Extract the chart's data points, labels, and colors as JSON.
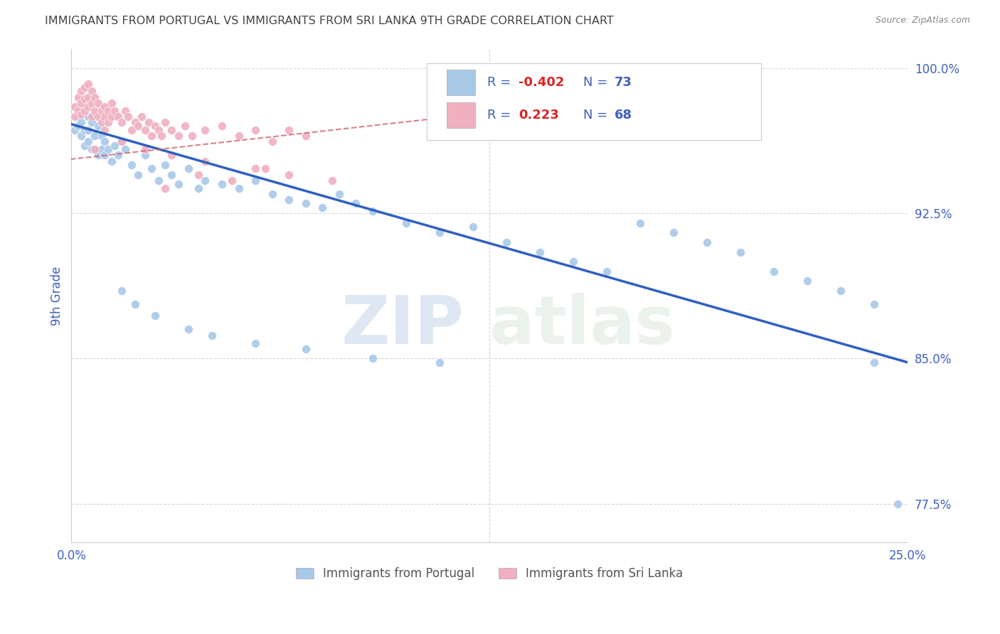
{
  "title": "IMMIGRANTS FROM PORTUGAL VS IMMIGRANTS FROM SRI LANKA 9TH GRADE CORRELATION CHART",
  "source": "Source: ZipAtlas.com",
  "ylabel": "9th Grade",
  "watermark_zip": "ZIP",
  "watermark_atlas": "atlas",
  "legend_blue_R": "R = -0.402",
  "legend_blue_N": "N = 73",
  "legend_pink_R": "R =  0.223",
  "legend_pink_N": "N = 68",
  "legend_label_portugal": "Immigrants from Portugal",
  "legend_label_srilanka": "Immigrants from Sri Lanka",
  "portugal_color": "#a8c8e8",
  "srilanka_color": "#f0b0c0",
  "portugal_line_color": "#3060c0",
  "srilanka_line_color": "#d06070",
  "blue_label_color": "#4060c0",
  "grid_color": "#cccccc",
  "title_color": "#444444",
  "source_color": "#888888",
  "xlim": [
    0.0,
    0.25
  ],
  "ylim": [
    0.755,
    1.01
  ],
  "ytick_vals": [
    0.775,
    0.85,
    0.925,
    1.0
  ],
  "ytick_labels": [
    "77.5%",
    "85.0%",
    "92.5%",
    "100.0%"
  ],
  "xtick_vals": [
    0.0,
    0.05,
    0.1,
    0.15,
    0.2,
    0.25
  ],
  "xtick_labels": [
    "0.0%",
    "",
    "",
    "",
    "",
    "25.0%"
  ],
  "portugal_line_x": [
    0.0,
    0.25
  ],
  "portugal_line_y": [
    0.971,
    0.848
  ],
  "srilanka_line_x": [
    -0.005,
    0.13
  ],
  "srilanka_line_y": [
    0.952,
    0.978
  ],
  "portugal_scatter_x": [
    0.001,
    0.002,
    0.002,
    0.003,
    0.003,
    0.004,
    0.004,
    0.005,
    0.005,
    0.005,
    0.006,
    0.006,
    0.007,
    0.007,
    0.008,
    0.008,
    0.009,
    0.009,
    0.01,
    0.01,
    0.011,
    0.012,
    0.013,
    0.014,
    0.015,
    0.016,
    0.018,
    0.02,
    0.022,
    0.024,
    0.026,
    0.028,
    0.03,
    0.032,
    0.035,
    0.038,
    0.04,
    0.045,
    0.05,
    0.055,
    0.06,
    0.065,
    0.07,
    0.075,
    0.08,
    0.085,
    0.09,
    0.1,
    0.11,
    0.12,
    0.13,
    0.14,
    0.15,
    0.16,
    0.17,
    0.18,
    0.19,
    0.2,
    0.21,
    0.22,
    0.23,
    0.24,
    0.015,
    0.019,
    0.025,
    0.035,
    0.042,
    0.055,
    0.07,
    0.09,
    0.11,
    0.24,
    0.247
  ],
  "portugal_scatter_y": [
    0.968,
    0.975,
    0.97,
    0.972,
    0.965,
    0.968,
    0.96,
    0.975,
    0.968,
    0.962,
    0.958,
    0.972,
    0.965,
    0.958,
    0.97,
    0.955,
    0.965,
    0.958,
    0.955,
    0.962,
    0.958,
    0.952,
    0.96,
    0.955,
    0.962,
    0.958,
    0.95,
    0.945,
    0.955,
    0.948,
    0.942,
    0.95,
    0.945,
    0.94,
    0.948,
    0.938,
    0.942,
    0.94,
    0.938,
    0.942,
    0.935,
    0.932,
    0.93,
    0.928,
    0.935,
    0.93,
    0.926,
    0.92,
    0.915,
    0.918,
    0.91,
    0.905,
    0.9,
    0.895,
    0.92,
    0.915,
    0.91,
    0.905,
    0.895,
    0.89,
    0.885,
    0.878,
    0.885,
    0.878,
    0.872,
    0.865,
    0.862,
    0.858,
    0.855,
    0.85,
    0.848,
    0.848,
    0.775
  ],
  "srilanka_scatter_x": [
    0.001,
    0.001,
    0.002,
    0.002,
    0.003,
    0.003,
    0.003,
    0.004,
    0.004,
    0.004,
    0.005,
    0.005,
    0.005,
    0.006,
    0.006,
    0.006,
    0.007,
    0.007,
    0.008,
    0.008,
    0.009,
    0.009,
    0.01,
    0.01,
    0.01,
    0.011,
    0.011,
    0.012,
    0.012,
    0.013,
    0.014,
    0.015,
    0.016,
    0.017,
    0.018,
    0.019,
    0.02,
    0.021,
    0.022,
    0.023,
    0.024,
    0.025,
    0.026,
    0.027,
    0.028,
    0.03,
    0.032,
    0.034,
    0.036,
    0.04,
    0.045,
    0.05,
    0.055,
    0.06,
    0.065,
    0.07,
    0.028,
    0.038,
    0.048,
    0.058,
    0.007,
    0.015,
    0.022,
    0.03,
    0.04,
    0.055,
    0.065,
    0.078
  ],
  "srilanka_scatter_y": [
    0.98,
    0.975,
    0.985,
    0.978,
    0.988,
    0.982,
    0.976,
    0.99,
    0.984,
    0.978,
    0.992,
    0.985,
    0.98,
    0.988,
    0.982,
    0.975,
    0.985,
    0.978,
    0.982,
    0.975,
    0.978,
    0.972,
    0.98,
    0.975,
    0.968,
    0.978,
    0.972,
    0.982,
    0.975,
    0.978,
    0.975,
    0.972,
    0.978,
    0.975,
    0.968,
    0.972,
    0.97,
    0.975,
    0.968,
    0.972,
    0.965,
    0.97,
    0.968,
    0.965,
    0.972,
    0.968,
    0.965,
    0.97,
    0.965,
    0.968,
    0.97,
    0.965,
    0.968,
    0.962,
    0.968,
    0.965,
    0.938,
    0.945,
    0.942,
    0.948,
    0.958,
    0.962,
    0.958,
    0.955,
    0.952,
    0.948,
    0.945,
    0.942
  ]
}
